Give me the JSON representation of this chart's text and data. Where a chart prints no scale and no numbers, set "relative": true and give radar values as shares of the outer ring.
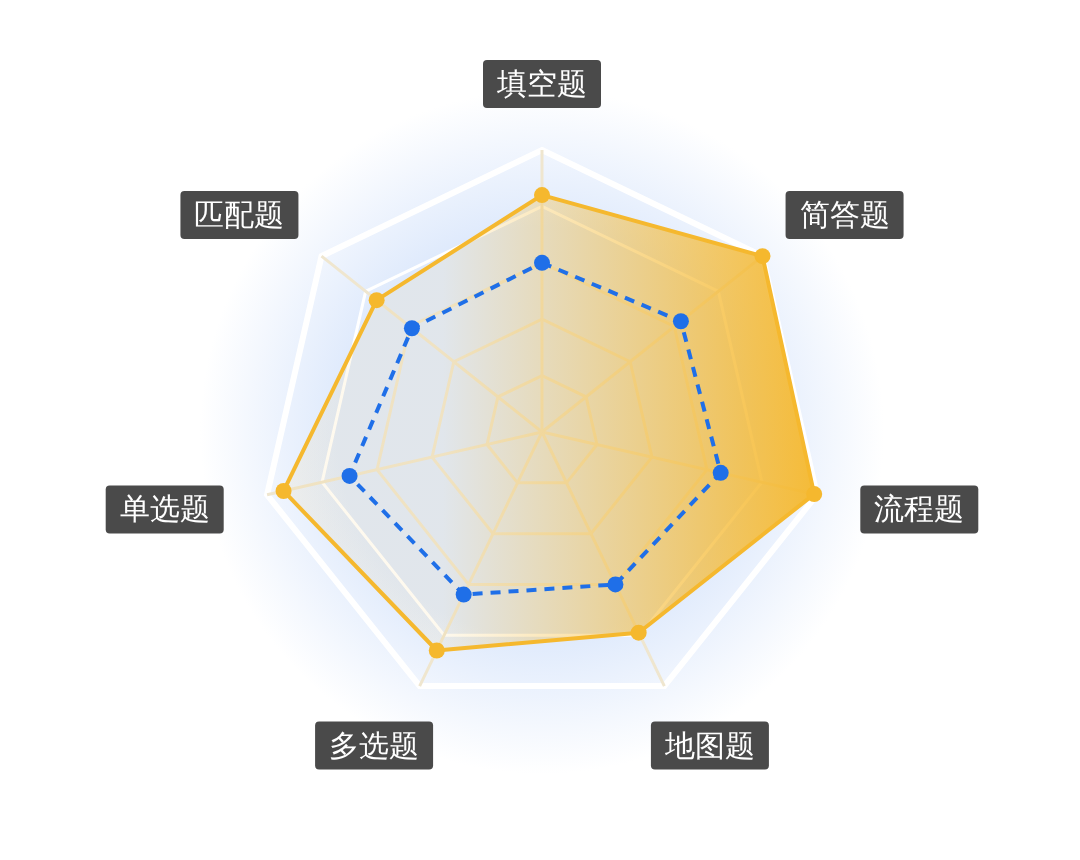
{
  "chart_data": {
    "type": "radar",
    "relative": true,
    "grid": true,
    "marker": "circle",
    "categories": [
      "填空题",
      "简答题",
      "流程题",
      "地图题",
      "多选题",
      "单选题",
      "匹配题"
    ],
    "series": [
      {
        "color": "#f5b82e",
        "line_style": "solid",
        "values": [
          0.84,
          1.0,
          0.99,
          0.79,
          0.86,
          0.94,
          0.75
        ]
      },
      {
        "color": "#1f6fe8",
        "line_style": "dashed",
        "values": [
          0.6,
          0.63,
          0.65,
          0.6,
          0.64,
          0.7,
          0.59
        ]
      }
    ]
  }
}
